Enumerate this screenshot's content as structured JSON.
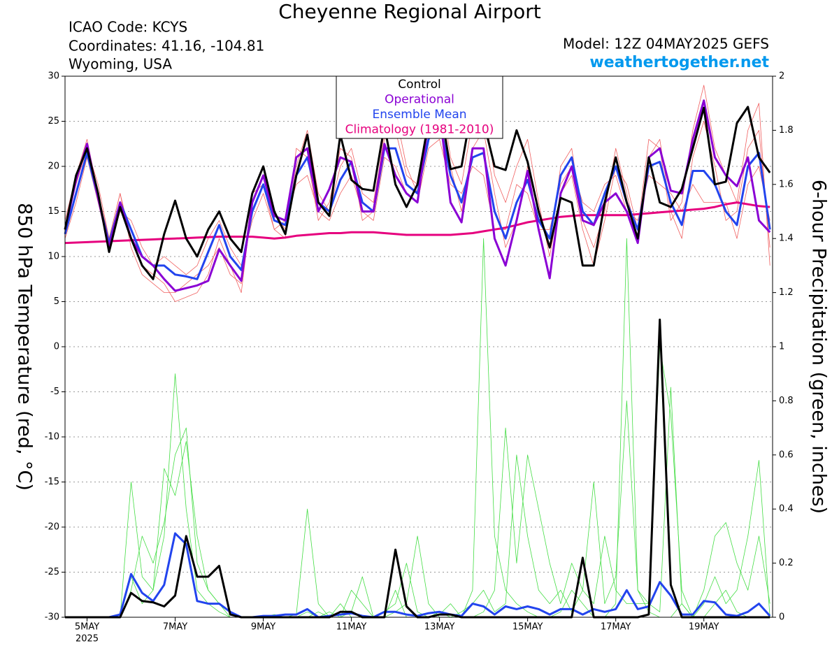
{
  "chart_data": {
    "type": "line",
    "title": "Cheyenne Regional Airport",
    "info_left": [
      "ICAO Code: KCYS",
      "Coordinates: 41.16, -104.81",
      "Wyoming, USA"
    ],
    "model": "Model: 12Z 04MAY2025 GEFS",
    "site": "weathertogether.net",
    "ylabel": "850 hPa Temperature (red, °C)",
    "y2label": "6-hour Precipitation (green, inches)",
    "xtick_year": "2025",
    "grid": true,
    "legend": "top",
    "xlim": [
      4.5,
      20.56
    ],
    "xticks": [
      {
        "value": 5,
        "label": "5MAY"
      },
      {
        "value": 7,
        "label": "7MAY"
      },
      {
        "value": 9,
        "label": "9MAY"
      },
      {
        "value": 11,
        "label": "11MAY"
      },
      {
        "value": 13,
        "label": "13MAY"
      },
      {
        "value": 15,
        "label": "15MAY"
      },
      {
        "value": 17,
        "label": "17MAY"
      },
      {
        "value": 19,
        "label": "19MAY"
      }
    ],
    "ylim": [
      -30,
      30
    ],
    "yticks": [
      -30,
      -25,
      -20,
      -15,
      -10,
      -5,
      0,
      5,
      10,
      15,
      20,
      25,
      30
    ],
    "y2lim": [
      0,
      2
    ],
    "y2ticks": [
      0,
      0.2,
      0.4,
      0.6,
      0.8,
      1,
      1.2,
      1.4,
      1.6,
      1.8,
      2
    ],
    "x": [
      4.5,
      4.75,
      5,
      5.25,
      5.5,
      5.75,
      6,
      6.25,
      6.5,
      6.75,
      7,
      7.25,
      7.5,
      7.75,
      8,
      8.25,
      8.5,
      8.75,
      9,
      9.25,
      9.5,
      9.75,
      10,
      10.25,
      10.5,
      10.75,
      11,
      11.25,
      11.5,
      11.75,
      12,
      12.25,
      12.5,
      12.75,
      13,
      13.25,
      13.5,
      13.75,
      14,
      14.25,
      14.5,
      14.75,
      15,
      15.25,
      15.5,
      15.75,
      16,
      16.25,
      16.5,
      16.75,
      17,
      17.25,
      17.5,
      17.75,
      18,
      18.25,
      18.5,
      18.75,
      19,
      19.25,
      19.5,
      19.75,
      20,
      20.25,
      20.5
    ],
    "series": [
      {
        "name": "Control",
        "color": "#000000",
        "width": 3,
        "values": [
          13,
          19,
          22,
          17,
          10.5,
          15.5,
          12,
          9,
          7.5,
          12.5,
          16.2,
          12,
          10,
          13,
          15,
          12,
          10.5,
          17,
          20,
          15,
          12.5,
          19,
          23.5,
          16,
          14.5,
          23.5,
          18.5,
          17.5,
          17.3,
          24.5,
          18,
          15.5,
          18,
          25,
          27,
          19.7,
          20,
          27,
          25,
          20,
          19.6,
          24,
          20.5,
          15,
          11,
          16.5,
          16,
          9,
          9,
          16,
          21,
          16,
          12,
          21,
          16,
          15.5,
          17.5,
          22,
          26.5,
          18,
          18.3,
          24.8,
          26.6,
          21,
          19.3
        ]
      },
      {
        "name": "Operational",
        "color": "#8a00d4",
        "width": 3,
        "values": [
          13,
          18.5,
          22.5,
          16.5,
          11,
          16,
          12,
          10,
          9,
          7.5,
          6.2,
          6.5,
          6.8,
          7.3,
          10.8,
          9,
          7.3,
          16,
          19,
          14.5,
          14,
          21,
          22,
          15,
          17.5,
          21,
          20.5,
          15,
          15,
          22.5,
          19,
          17,
          16,
          25,
          26,
          16,
          13.8,
          22,
          22,
          12,
          9,
          14,
          19.5,
          13,
          7.6,
          17,
          20,
          14,
          13.5,
          16,
          17,
          15,
          11.5,
          21,
          22,
          17.3,
          17,
          23,
          27.3,
          21,
          19,
          17.8,
          21,
          14,
          12.7
        ]
      },
      {
        "name": "Ensemble Mean",
        "color": "#2244ee",
        "width": 3,
        "values": [
          12.5,
          17,
          21.5,
          16.5,
          11.5,
          16,
          13,
          10,
          9,
          9,
          8,
          7.8,
          7.5,
          10.5,
          13.5,
          10,
          8.5,
          15,
          18,
          14,
          13.5,
          19,
          21,
          16,
          15,
          18.5,
          20.5,
          16,
          15,
          22,
          22,
          18,
          17,
          23,
          25,
          19,
          16,
          21,
          21.5,
          15,
          12,
          16,
          18.5,
          14,
          12,
          19,
          21,
          15,
          13.5,
          17,
          20,
          16,
          13,
          20,
          20.5,
          16,
          13.5,
          19.5,
          19.5,
          18,
          15,
          13.5,
          20,
          21.5,
          13
        ]
      },
      {
        "name": "Climatology (1981-2010)",
        "color": "#e6007e",
        "width": 3,
        "values": [
          11.5,
          11.55,
          11.6,
          11.65,
          11.7,
          11.75,
          11.8,
          11.85,
          11.9,
          11.95,
          12,
          12.05,
          12.1,
          12.15,
          12.2,
          12.2,
          12.2,
          12.2,
          12.1,
          12,
          12.1,
          12.3,
          12.4,
          12.5,
          12.6,
          12.6,
          12.7,
          12.7,
          12.7,
          12.6,
          12.5,
          12.4,
          12.4,
          12.4,
          12.4,
          12.4,
          12.5,
          12.6,
          12.8,
          13,
          13.2,
          13.5,
          13.8,
          14,
          14.2,
          14.4,
          14.5,
          14.6,
          14.6,
          14.6,
          14.6,
          14.6,
          14.7,
          14.8,
          14.9,
          15,
          15.1,
          15.2,
          15.3,
          15.5,
          15.8,
          16,
          15.8,
          15.6,
          15.5
        ]
      },
      {
        "color": "#000000",
        "width": 3,
        "axis": "y2",
        "values": [
          0,
          0,
          0,
          0,
          0,
          0,
          0.09,
          0.06,
          0.055,
          0.04,
          0.08,
          0.3,
          0.15,
          0.15,
          0.19,
          0.01,
          0,
          0,
          0,
          0,
          0,
          0,
          0,
          0,
          0,
          0.02,
          0.02,
          0,
          0,
          0,
          0.25,
          0.04,
          0,
          0,
          0.01,
          0.01,
          0,
          0,
          0,
          0,
          0,
          0,
          0,
          0,
          0,
          0,
          0,
          0.22,
          0,
          0,
          0,
          0,
          0,
          0.01,
          1.1,
          0.12,
          0,
          0,
          0,
          0,
          0,
          0,
          0,
          0,
          0
        ]
      },
      {
        "color": "#2244ee",
        "width": 3,
        "axis": "y2",
        "values": [
          0,
          0,
          0,
          0,
          0,
          0.01,
          0.16,
          0.09,
          0.06,
          0.12,
          0.31,
          0.27,
          0.06,
          0.05,
          0.05,
          0.02,
          0,
          0,
          0.005,
          0.005,
          0.01,
          0.01,
          0.03,
          0,
          0.005,
          0.01,
          0.015,
          0.005,
          0,
          0.02,
          0.02,
          0.01,
          0.005,
          0.015,
          0.02,
          0.01,
          0.005,
          0.05,
          0.04,
          0.01,
          0.04,
          0.03,
          0.04,
          0.03,
          0.01,
          0.03,
          0.03,
          0.01,
          0.03,
          0.02,
          0.03,
          0.1,
          0.03,
          0.04,
          0.13,
          0.08,
          0.01,
          0.01,
          0.06,
          0.055,
          0.01,
          0.005,
          0.02,
          0.05,
          0.005
        ]
      },
      {
        "color": "#f06060",
        "width": 0.8,
        "values": [
          14,
          19,
          23,
          17,
          12,
          17,
          12,
          9,
          8,
          7,
          5,
          5.5,
          6,
          8,
          12,
          9,
          6,
          16,
          19,
          15,
          13,
          20,
          24,
          17,
          15,
          20,
          22,
          17,
          16,
          23,
          24,
          19,
          18,
          24,
          28,
          20,
          15,
          22,
          24,
          17,
          11,
          14,
          20,
          15,
          11,
          20,
          22,
          14,
          11,
          15,
          22,
          17,
          12,
          21,
          23,
          15,
          12,
          21,
          25,
          20,
          14,
          15,
          22,
          24,
          11
        ]
      },
      {
        "color": "#f06060",
        "width": 0.8,
        "values": [
          12,
          16,
          21,
          16,
          11,
          15,
          14,
          11,
          9,
          10,
          9,
          8,
          9,
          12,
          14,
          11,
          9,
          14,
          17,
          13,
          14,
          18,
          19,
          15,
          14,
          17,
          19,
          15,
          14,
          21,
          20,
          17,
          16,
          22,
          23,
          18,
          17,
          20,
          19,
          13,
          13,
          18,
          17,
          13,
          13,
          18,
          20,
          16,
          15,
          18,
          19,
          15,
          14,
          19,
          18,
          17,
          15,
          18,
          16,
          16,
          16,
          12,
          18,
          20,
          14
        ]
      },
      {
        "color": "#f06060",
        "width": 0.8,
        "values": [
          13,
          18,
          22,
          18,
          12,
          17,
          11,
          8,
          7,
          6,
          6,
          7,
          8,
          9,
          11,
          8,
          7,
          17,
          18,
          13,
          12,
          22,
          21,
          14,
          16,
          22,
          21,
          14,
          15,
          24,
          26,
          20,
          17,
          26,
          29,
          21,
          18,
          25,
          27,
          19,
          16,
          20,
          23,
          16,
          10,
          17,
          19,
          13,
          9,
          14,
          20,
          18,
          13,
          23,
          22,
          14,
          16,
          24,
          29,
          22,
          19,
          16,
          24,
          27,
          9
        ]
      },
      {
        "color": "#44dd44",
        "width": 0.8,
        "axis": "y2",
        "values": [
          0,
          0,
          0,
          0,
          0,
          0,
          0.5,
          0.15,
          0.1,
          0.3,
          0.9,
          0.4,
          0.1,
          0.05,
          0.02,
          0,
          0,
          0,
          0,
          0,
          0,
          0,
          0,
          0.02,
          0,
          0.05,
          0,
          0,
          0,
          0,
          0.1,
          0,
          0,
          0,
          0.02,
          0,
          0,
          0.1,
          1.4,
          0.3,
          0.1,
          0.05,
          0.02,
          0,
          0,
          0.02,
          0.1,
          0.05,
          0,
          0,
          0.05,
          1.4,
          0.1,
          0.02,
          0,
          0,
          0.05,
          0,
          0,
          0.05,
          0.1,
          0.02,
          0,
          0,
          0
        ]
      },
      {
        "color": "#44dd44",
        "width": 0.8,
        "axis": "y2",
        "values": [
          0,
          0,
          0,
          0,
          0,
          0,
          0.1,
          0.3,
          0.2,
          0.35,
          0.6,
          0.7,
          0.2,
          0.1,
          0.05,
          0.02,
          0,
          0,
          0,
          0,
          0,
          0.01,
          0.4,
          0.05,
          0,
          0,
          0.1,
          0.05,
          0,
          0.02,
          0.05,
          0.2,
          0.02,
          0,
          0.01,
          0.05,
          0,
          0,
          0.02,
          0.1,
          0.7,
          0.2,
          0.6,
          0.4,
          0.2,
          0.05,
          0.2,
          0.1,
          0.05,
          0.3,
          0.1,
          0.05,
          0.05,
          0.05,
          1,
          0.75,
          0.1,
          0,
          0.1,
          0.3,
          0.35,
          0.2,
          0.1,
          0.3,
          0.05
        ]
      },
      {
        "color": "#44dd44",
        "width": 0.8,
        "axis": "y2",
        "values": [
          0,
          0,
          0,
          0,
          0,
          0,
          0.15,
          0.05,
          0.1,
          0.55,
          0.45,
          0.65,
          0.3,
          0.1,
          0.05,
          0,
          0,
          0,
          0,
          0.01,
          0,
          0,
          0.02,
          0,
          0.02,
          0,
          0.02,
          0.15,
          0,
          0,
          0.02,
          0.05,
          0.3,
          0.05,
          0,
          0,
          0.02,
          0.05,
          0.1,
          0.02,
          0.05,
          0.6,
          0.3,
          0.1,
          0.05,
          0.1,
          0.02,
          0.1,
          0.5,
          0.05,
          0.15,
          0.8,
          0.1,
          0.05,
          0.02,
          0.85,
          0.05,
          0,
          0.05,
          0.15,
          0.05,
          0.1,
          0.3,
          0.58,
          0
        ]
      }
    ]
  }
}
